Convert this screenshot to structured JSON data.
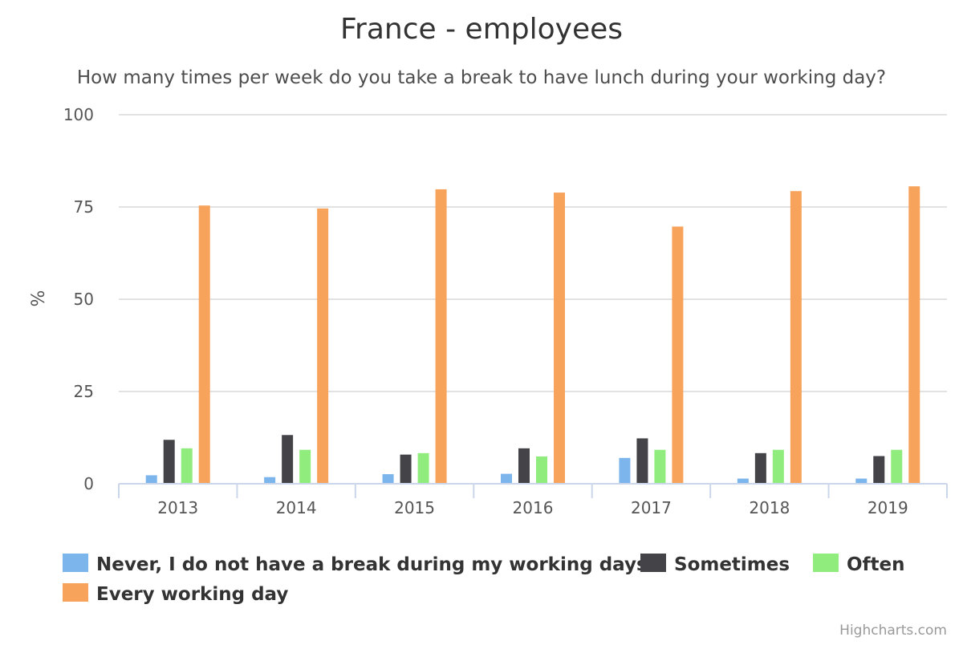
{
  "chart_data": {
    "type": "bar",
    "title": "France - employees",
    "subtitle": "How many times per week do you take a break to have lunch during your working day?",
    "xlabel": "",
    "ylabel": "%",
    "ylim": [
      0,
      100
    ],
    "yticks": [
      0,
      25,
      50,
      75,
      100
    ],
    "grid": true,
    "legend_position": "bottom",
    "categories": [
      "2013",
      "2014",
      "2015",
      "2016",
      "2017",
      "2018",
      "2019"
    ],
    "series": [
      {
        "name": "Never, I do not have a break during my working days",
        "color": "#7cb5ec",
        "values": [
          2.3,
          1.8,
          2.6,
          2.7,
          7.0,
          1.4,
          1.4
        ]
      },
      {
        "name": "Sometimes",
        "color": "#434348",
        "values": [
          11.9,
          13.2,
          7.9,
          9.6,
          12.3,
          8.3,
          7.5
        ]
      },
      {
        "name": "Often",
        "color": "#90ed7d",
        "values": [
          9.6,
          9.2,
          8.3,
          7.4,
          9.2,
          9.2,
          9.2
        ]
      },
      {
        "name": "Every working day",
        "color": "#f7a35c",
        "values": [
          75.4,
          74.6,
          79.8,
          78.9,
          69.7,
          79.3,
          80.6
        ]
      }
    ]
  },
  "credits": "Highcharts.com"
}
